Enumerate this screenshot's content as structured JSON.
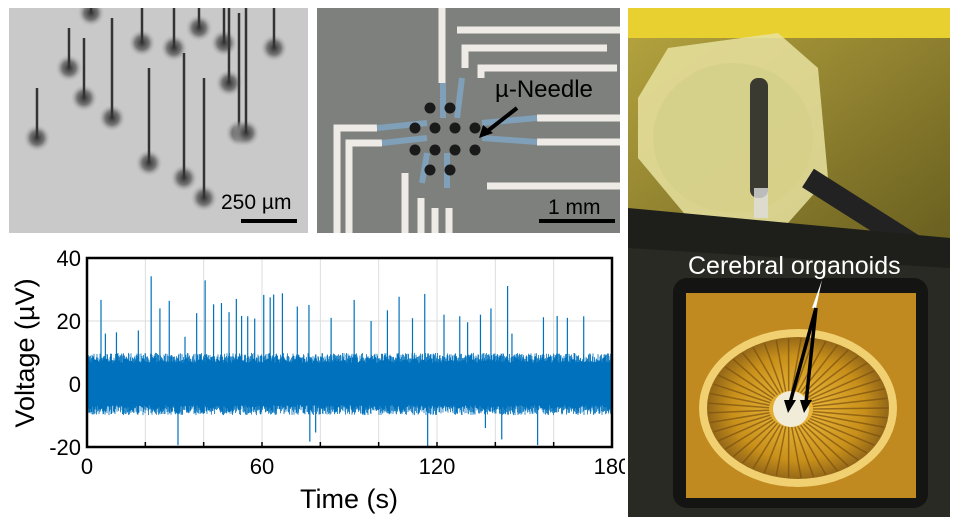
{
  "panels": {
    "sem": {
      "scale_label": "250 µm"
    },
    "chip": {
      "annotation": "µ-Needle",
      "scale_label": "1 mm"
    },
    "setup": {
      "annotation": "Cerebral organoids"
    }
  },
  "chart_data": {
    "type": "line",
    "xlabel": "Time (s)",
    "ylabel": "Voltage (µV)",
    "xlim": [
      0,
      180
    ],
    "ylim": [
      -20,
      40
    ],
    "xticks": [
      0,
      60,
      120,
      180
    ],
    "yticks": [
      -20,
      0,
      20,
      40
    ],
    "grid": true,
    "line_color": "#0072BD",
    "noise_band": [
      -9,
      9
    ],
    "spikes": [
      {
        "t": 4.8,
        "v": 26.7
      },
      {
        "t": 6.3,
        "v": 16
      },
      {
        "t": 10.1,
        "v": 16.4
      },
      {
        "t": 17.6,
        "v": 17
      },
      {
        "t": 22,
        "v": 34.2
      },
      {
        "t": 25,
        "v": 24
      },
      {
        "t": 28.2,
        "v": 26.4
      },
      {
        "t": 31.2,
        "v": -19.4
      },
      {
        "t": 33.6,
        "v": 15
      },
      {
        "t": 37.6,
        "v": 22.5
      },
      {
        "t": 40.5,
        "v": 32.9
      },
      {
        "t": 43.4,
        "v": 25.3
      },
      {
        "t": 46.1,
        "v": 25.7
      },
      {
        "t": 48.7,
        "v": 22.8
      },
      {
        "t": 51.2,
        "v": 27
      },
      {
        "t": 53,
        "v": 21.6
      },
      {
        "t": 55.1,
        "v": 21.5
      },
      {
        "t": 57.5,
        "v": 20.8
      },
      {
        "t": 60.6,
        "v": 28.3
      },
      {
        "t": 62.8,
        "v": 27.5
      },
      {
        "t": 64,
        "v": 28.4
      },
      {
        "t": 67,
        "v": 28.8
      },
      {
        "t": 72.1,
        "v": 24.6
      },
      {
        "t": 76.1,
        "v": 25.1
      },
      {
        "t": 76.4,
        "v": -18.3
      },
      {
        "t": 78.4,
        "v": -15.4
      },
      {
        "t": 83.7,
        "v": 21
      },
      {
        "t": 91.6,
        "v": 26.7
      },
      {
        "t": 97.4,
        "v": 20
      },
      {
        "t": 103,
        "v": 23.4
      },
      {
        "t": 107,
        "v": 27.7
      },
      {
        "t": 111.6,
        "v": 20.9
      },
      {
        "t": 115.8,
        "v": 28.6
      },
      {
        "t": 116.8,
        "v": -19.9
      },
      {
        "t": 122.4,
        "v": 22
      },
      {
        "t": 127.8,
        "v": 21.5
      },
      {
        "t": 130.5,
        "v": 19.6
      },
      {
        "t": 134.9,
        "v": 22
      },
      {
        "t": 136.6,
        "v": -14
      },
      {
        "t": 138.5,
        "v": 24
      },
      {
        "t": 142.2,
        "v": -17.6
      },
      {
        "t": 144.2,
        "v": 31.1
      },
      {
        "t": 145.7,
        "v": 16
      },
      {
        "t": 154.5,
        "v": -19.4
      },
      {
        "t": 156.5,
        "v": 21.2
      },
      {
        "t": 161.2,
        "v": 21.6
      },
      {
        "t": 164.7,
        "v": 21
      },
      {
        "t": 170.3,
        "v": 21.5
      }
    ]
  }
}
